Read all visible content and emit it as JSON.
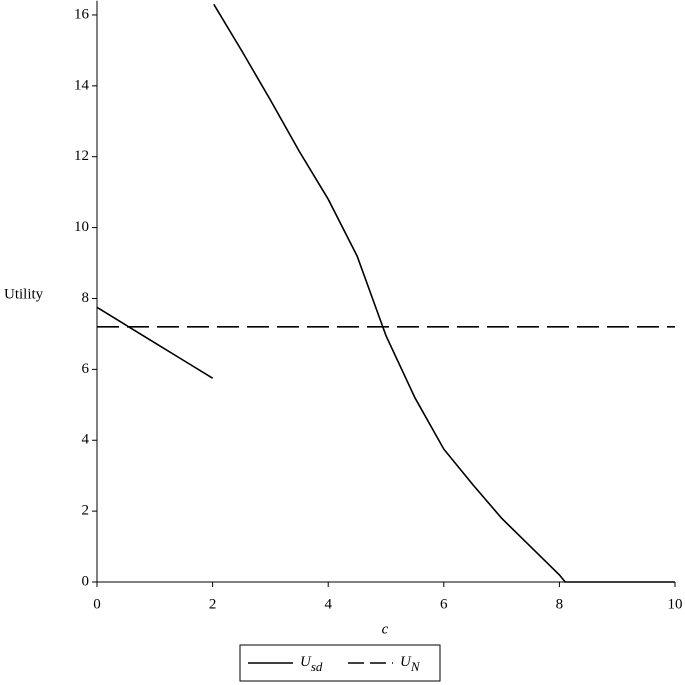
{
  "chart_data": {
    "type": "line",
    "x_label": "c",
    "y_label": "Utility",
    "xlim": [
      0,
      10
    ],
    "ylim": [
      0,
      16.4
    ],
    "xticks": [
      0,
      2,
      4,
      6,
      8,
      10
    ],
    "yticks": [
      0,
      2,
      4,
      6,
      8,
      10,
      12,
      14,
      16
    ],
    "legend": "bottom",
    "series": [
      {
        "name": "Usd",
        "color": "#000000",
        "dash": "solid",
        "x": [
          0,
          0.5,
          1,
          1.5,
          2,
          2,
          2.02,
          2.5,
          3,
          3.5,
          4,
          4.5,
          5,
          5.5,
          6,
          6.5,
          7,
          7.5,
          8,
          8.1,
          8.5,
          9,
          9.5,
          10
        ],
        "values": [
          7.75,
          7.25,
          6.75,
          6.25,
          5.75,
          null,
          16.3,
          15.0,
          13.6,
          12.15,
          10.8,
          9.2,
          6.95,
          5.2,
          3.75,
          2.75,
          1.8,
          1.0,
          0.2,
          0,
          0,
          0,
          0,
          0
        ]
      },
      {
        "name": "UN",
        "color": "#000000",
        "dash": "dashed",
        "x": [
          0,
          10
        ],
        "values": [
          7.2,
          7.2
        ]
      }
    ]
  }
}
